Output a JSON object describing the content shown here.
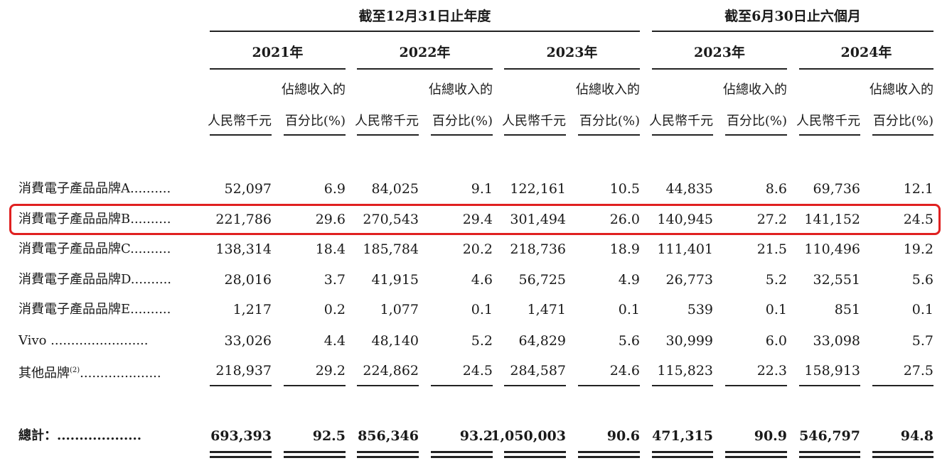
{
  "header": {
    "group_fy": "截至12月31日止年度",
    "group_6m": "截至6月30日止六個月",
    "years": [
      "2021年",
      "2022年",
      "2023年",
      "2023年",
      "2024年"
    ],
    "col_rmb": "人民幣千元",
    "col_pct_line1": "佔總收入的",
    "col_pct_line2": "百分比(%)"
  },
  "rows": [
    {
      "label": "消費電子產品品牌A..........",
      "values": [
        "52,097",
        "6.9",
        "84,025",
        "9.1",
        "122,161",
        "10.5",
        "44,835",
        "8.6",
        "69,736",
        "12.1"
      ]
    },
    {
      "label": "消費電子產品品牌B..........",
      "values": [
        "221,786",
        "29.6",
        "270,543",
        "29.4",
        "301,494",
        "26.0",
        "140,945",
        "27.2",
        "141,152",
        "24.5"
      ]
    },
    {
      "label": "消費電子產品品牌C..........",
      "values": [
        "138,314",
        "18.4",
        "185,784",
        "20.2",
        "218,736",
        "18.9",
        "111,401",
        "21.5",
        "110,496",
        "19.2"
      ]
    },
    {
      "label": "消費電子產品品牌D..........",
      "values": [
        "28,016",
        "3.7",
        "41,915",
        "4.6",
        "56,725",
        "4.9",
        "26,773",
        "5.2",
        "32,551",
        "5.6"
      ]
    },
    {
      "label": "消費電子產品品牌E..........",
      "values": [
        "1,217",
        "0.2",
        "1,077",
        "0.1",
        "1,471",
        "0.1",
        "539",
        "0.1",
        "851",
        "0.1"
      ]
    },
    {
      "label": "Vivo ........................",
      "values": [
        "33,026",
        "4.4",
        "48,140",
        "5.2",
        "64,829",
        "5.6",
        "30,999",
        "6.0",
        "33,098",
        "5.7"
      ]
    },
    {
      "label": "其他品牌",
      "label_sup": "(2)",
      "label_dots": "....................",
      "values": [
        "218,937",
        "29.2",
        "224,862",
        "24.5",
        "284,587",
        "24.6",
        "115,823",
        "22.3",
        "158,913",
        "27.5"
      ]
    }
  ],
  "total": {
    "label": "總計：...................",
    "values": [
      "693,393",
      "92.5",
      "856,346",
      "93.2",
      "1,050,003",
      "90.6",
      "471,315",
      "90.9",
      "546,797",
      "94.8"
    ]
  }
}
